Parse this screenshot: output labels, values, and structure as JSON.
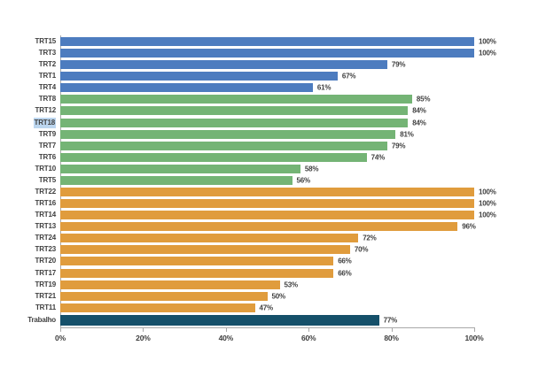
{
  "chart_data": {
    "type": "bar",
    "orientation": "horizontal",
    "title": "",
    "xlabel": "",
    "ylabel": "",
    "xlim": [
      0,
      100
    ],
    "grid": false,
    "legend": false,
    "x_tick_values": [
      0,
      20,
      40,
      60,
      80,
      100
    ],
    "x_tick_labels": [
      "0%",
      "20%",
      "40%",
      "60%",
      "80%",
      "100%"
    ],
    "categories": [
      "TRT15",
      "TRT3",
      "TRT2",
      "TRT1",
      "TRT4",
      "TRT8",
      "TRT12",
      "TRT18",
      "TRT9",
      "TRT7",
      "TRT6",
      "TRT10",
      "TRT5",
      "TRT22",
      "TRT16",
      "TRT14",
      "TRT13",
      "TRT24",
      "TRT23",
      "TRT20",
      "TRT17",
      "TRT19",
      "TRT21",
      "TRT11",
      "Trabalho"
    ],
    "values": [
      100,
      100,
      79,
      67,
      61,
      85,
      84,
      84,
      81,
      79,
      74,
      58,
      56,
      100,
      100,
      100,
      96,
      72,
      70,
      66,
      66,
      53,
      50,
      47,
      77
    ],
    "value_labels": [
      "100%",
      "100%",
      "79%",
      "67%",
      "61%",
      "85%",
      "84%",
      "84%",
      "81%",
      "79%",
      "74%",
      "58%",
      "56%",
      "100%",
      "100%",
      "100%",
      "96%",
      "72%",
      "70%",
      "66%",
      "66%",
      "53%",
      "50%",
      "47%",
      "77%"
    ],
    "groups": [
      "blue",
      "blue",
      "blue",
      "blue",
      "blue",
      "green",
      "green",
      "green",
      "green",
      "green",
      "green",
      "green",
      "green",
      "orange",
      "orange",
      "orange",
      "orange",
      "orange",
      "orange",
      "orange",
      "orange",
      "orange",
      "orange",
      "orange",
      "teal"
    ],
    "colors": {
      "blue": "#4d7cbf",
      "green": "#74b475",
      "orange": "#e09c3d",
      "teal": "#15506a"
    },
    "highlighted_category": "TRT18",
    "highlight_color": "#bcd6ef",
    "axis_color": "#a9a9a9",
    "text_color": "#404040"
  }
}
